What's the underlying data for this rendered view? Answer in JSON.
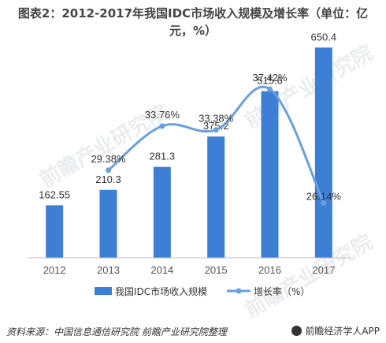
{
  "title": {
    "line1": "图表2：2012-2017年我国IDC市场收入规模及增长率（单位：亿",
    "line2": "元，%）"
  },
  "chart_data": {
    "type": "bar",
    "categories": [
      "2012",
      "2013",
      "2014",
      "2015",
      "2016",
      "2017"
    ],
    "series": [
      {
        "name": "我国IDC市场收入规模",
        "type": "bar",
        "axis": "left",
        "values": [
          162.55,
          210.3,
          281.3,
          375.2,
          515.6,
          650.4
        ],
        "labels": [
          "162.55",
          "210.3",
          "281.3",
          "375.2",
          "515.6",
          "650.4"
        ],
        "color": "#3d7fd4"
      },
      {
        "name": "增长率（%）",
        "type": "line",
        "axis": "right",
        "x": [
          "2013",
          "2014",
          "2015",
          "2016",
          "2017"
        ],
        "values": [
          29.38,
          33.76,
          33.38,
          37.42,
          26.14
        ],
        "labels": [
          "29.38%",
          "33.76%",
          "33.38%",
          "37.42%",
          "26.14%"
        ],
        "color": "#6a9fe0"
      }
    ],
    "ylim": [
      0,
      700
    ],
    "y2lim": [
      15,
      40
    ],
    "legend": "bottom",
    "grid": false
  },
  "legend": {
    "bar_label": "我国IDC市场收入规模",
    "line_label": "增长率（%）"
  },
  "footer": {
    "source": "资料来源：中国信息通信研究院 前瞻产业研究院整理",
    "brand": "前瞻经济学人APP"
  },
  "watermark": {
    "text": "前瞻产业研究院"
  }
}
